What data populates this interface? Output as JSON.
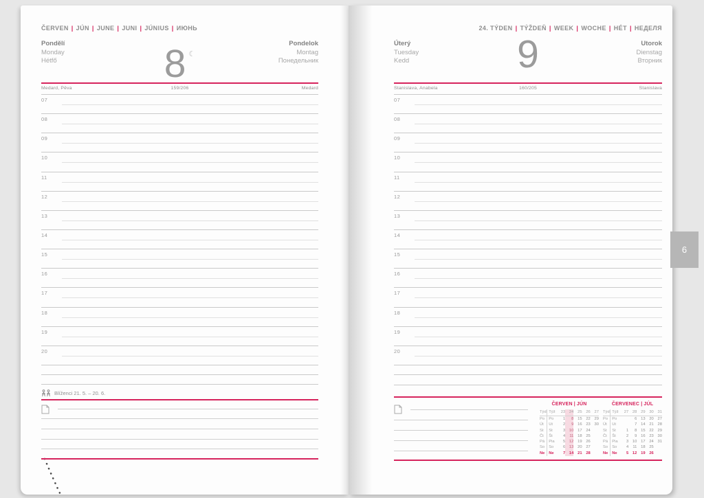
{
  "colors": {
    "accent": "#d6235c",
    "tab_bg": "#b6b6b6"
  },
  "separator": "|",
  "page_tab": {
    "label": "6"
  },
  "left_page": {
    "month_header": {
      "segments": [
        "ČERVEN",
        "JÚN",
        "JUNE",
        "JUNI",
        "JÚNIUS",
        "ИЮНЬ"
      ]
    },
    "day": {
      "names_primary": [
        "Pondělí",
        "Monday",
        "Hétfő"
      ],
      "date": "8",
      "moon_icon": "☾",
      "names_secondary": [
        "Pondelok",
        "Montag",
        "Понедельник"
      ],
      "name_day": {
        "left": "Medard, Pěva",
        "center": "159/206",
        "right": "Medard"
      }
    },
    "hours": [
      "07",
      "08",
      "09",
      "10",
      "11",
      "12",
      "13",
      "14",
      "15",
      "16",
      "17",
      "18",
      "19",
      "20"
    ],
    "zodiac": {
      "icon": "gemini",
      "label": "Blíženci 21. 5. – 20. 6."
    }
  },
  "right_page": {
    "week_header": {
      "segments": [
        "24. TÝDEN",
        "TÝŽDEŇ",
        "WEEK",
        "WOCHE",
        "HÉT",
        "НЕДЕЛЯ"
      ]
    },
    "day": {
      "names_primary": [
        "Úterý",
        "Tuesday",
        "Kedd"
      ],
      "date": "9",
      "names_secondary": [
        "Utorok",
        "Dienstag",
        "Вторник"
      ],
      "name_day": {
        "left": "Stanislava, Anabela",
        "center": "160/205",
        "right": "Stanislava"
      }
    },
    "hours": [
      "07",
      "08",
      "09",
      "10",
      "11",
      "12",
      "13",
      "14",
      "15",
      "16",
      "17",
      "18",
      "19",
      "20"
    ],
    "mini_calendars": [
      {
        "title": [
          "ČERVEN",
          "JÚN"
        ],
        "col_headers": [
          "Týd",
          "Týž",
          "23",
          "24",
          "25",
          "26",
          "27"
        ],
        "highlight_col": 3,
        "rows": [
          {
            "labels": [
              "Po",
              "Po"
            ],
            "days": [
              "1",
              "8",
              "15",
              "22",
              "29"
            ],
            "sunday": false
          },
          {
            "labels": [
              "Út",
              "Ut"
            ],
            "days": [
              "2",
              "9",
              "16",
              "23",
              "30"
            ],
            "sunday": false
          },
          {
            "labels": [
              "St",
              "St"
            ],
            "days": [
              "3",
              "10",
              "17",
              "24",
              ""
            ],
            "sunday": false
          },
          {
            "labels": [
              "Čt",
              "Št"
            ],
            "days": [
              "4",
              "11",
              "18",
              "25",
              ""
            ],
            "sunday": false
          },
          {
            "labels": [
              "Pá",
              "Pia"
            ],
            "days": [
              "5",
              "12",
              "19",
              "26",
              ""
            ],
            "sunday": false
          },
          {
            "labels": [
              "So",
              "So"
            ],
            "days": [
              "6",
              "13",
              "20",
              "27",
              ""
            ],
            "sunday": false
          },
          {
            "labels": [
              "Ne",
              "Ne"
            ],
            "days": [
              "7",
              "14",
              "21",
              "28",
              ""
            ],
            "sunday": true
          }
        ]
      },
      {
        "title": [
          "ČERVENEC",
          "JÚL"
        ],
        "col_headers": [
          "Týd",
          "Týž",
          "27",
          "28",
          "29",
          "30",
          "31"
        ],
        "highlight_col": -1,
        "rows": [
          {
            "labels": [
              "Po",
              "Po"
            ],
            "days": [
              "",
              "6",
              "13",
              "20",
              "27"
            ],
            "sunday": false
          },
          {
            "labels": [
              "Út",
              "Ut"
            ],
            "days": [
              "",
              "7",
              "14",
              "21",
              "28"
            ],
            "sunday": false
          },
          {
            "labels": [
              "St",
              "St"
            ],
            "days": [
              "1",
              "8",
              "15",
              "22",
              "29"
            ],
            "sunday": false
          },
          {
            "labels": [
              "Čt",
              "Št"
            ],
            "days": [
              "2",
              "9",
              "16",
              "23",
              "30"
            ],
            "sunday": false
          },
          {
            "labels": [
              "Pá",
              "Pia"
            ],
            "days": [
              "3",
              "10",
              "17",
              "24",
              "31"
            ],
            "sunday": false
          },
          {
            "labels": [
              "So",
              "So"
            ],
            "days": [
              "4",
              "11",
              "18",
              "25",
              ""
            ],
            "sunday": false
          },
          {
            "labels": [
              "Ne",
              "Ne"
            ],
            "days": [
              "5",
              "12",
              "19",
              "26",
              ""
            ],
            "sunday": true
          }
        ]
      }
    ]
  }
}
